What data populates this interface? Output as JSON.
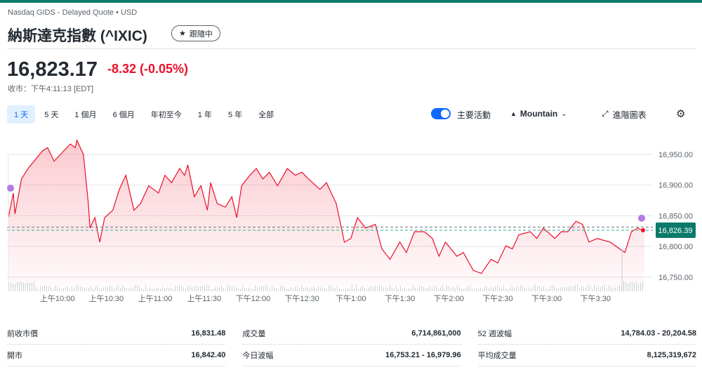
{
  "header": {
    "source": "Nasdaq GIDS - Delayed Quote • USD",
    "title": "納斯達克指數 (^IXIC)",
    "follow_label": "跟隨中"
  },
  "quote": {
    "price": "16,823.17",
    "change": "-8.32 (-0.05%)",
    "time": "收市：下午4:11:13 [EDT]"
  },
  "ranges": [
    {
      "label": "1 天",
      "active": true
    },
    {
      "label": "5 天"
    },
    {
      "label": "1 個月"
    },
    {
      "label": "6 個月"
    },
    {
      "label": "年初至今"
    },
    {
      "label": "1 年"
    },
    {
      "label": "5 年"
    },
    {
      "label": "全部"
    }
  ],
  "toolbar": {
    "events_label": "主要活動",
    "events_on": true,
    "chart_type": "Mountain",
    "advanced_label": "進階圖表"
  },
  "colors": {
    "line": "#eb0f29",
    "accent": "#0f69ff",
    "current_badge": "#0b7a6b",
    "event_dot": "#b57be5"
  },
  "chart_data": {
    "type": "area",
    "ylim": [
      16735,
      16990
    ],
    "y_ticks": [
      "16,950.00",
      "16,900.00",
      "16,850.00",
      "16,800.00",
      "16,750.00"
    ],
    "y_tick_values": [
      16950,
      16900,
      16850,
      16800,
      16750
    ],
    "x_ticks": [
      "上午10:00",
      "上午10:30",
      "上午11:00",
      "上午11:30",
      "下午12:00",
      "下午12:30",
      "下午1:00",
      "下午1:30",
      "下午2:00",
      "下午2:30",
      "下午3:00",
      "下午3:30"
    ],
    "x_tick_times": [
      "10:00",
      "10:30",
      "11:00",
      "11:30",
      "12:00",
      "12:30",
      "13:00",
      "13:30",
      "14:00",
      "14:30",
      "15:00",
      "15:30"
    ],
    "xlim": [
      "09:30",
      "16:00"
    ],
    "previous_close": 16831.48,
    "current_value": 16826.39,
    "current_label": "16,826.39",
    "grid": true,
    "points": [
      [
        "09:30",
        16847
      ],
      [
        "09:33",
        16887
      ],
      [
        "09:34",
        16853
      ],
      [
        "09:38",
        16910
      ],
      [
        "09:42",
        16927
      ],
      [
        "09:51",
        16956
      ],
      [
        "09:54",
        16961
      ],
      [
        "09:58",
        16939
      ],
      [
        "10:04",
        16956
      ],
      [
        "10:08",
        16967
      ],
      [
        "10:11",
        16961
      ],
      [
        "10:12",
        16973
      ],
      [
        "10:16",
        16950
      ],
      [
        "10:19",
        16870
      ],
      [
        "10:20",
        16830
      ],
      [
        "10:23",
        16847
      ],
      [
        "10:26",
        16807
      ],
      [
        "10:29",
        16847
      ],
      [
        "10:34",
        16859
      ],
      [
        "10:38",
        16893
      ],
      [
        "10:42",
        16916
      ],
      [
        "10:47",
        16859
      ],
      [
        "10:51",
        16870
      ],
      [
        "10:56",
        16899
      ],
      [
        "11:02",
        16887
      ],
      [
        "11:06",
        16916
      ],
      [
        "11:10",
        16904
      ],
      [
        "11:15",
        16927
      ],
      [
        "11:18",
        16916
      ],
      [
        "11:20",
        16933
      ],
      [
        "11:24",
        16881
      ],
      [
        "11:28",
        16899
      ],
      [
        "11:32",
        16859
      ],
      [
        "11:34",
        16904
      ],
      [
        "11:38",
        16870
      ],
      [
        "11:43",
        16864
      ],
      [
        "11:47",
        16881
      ],
      [
        "11:50",
        16847
      ],
      [
        "11:53",
        16899
      ],
      [
        "11:58",
        16916
      ],
      [
        "12:02",
        16927
      ],
      [
        "12:06",
        16910
      ],
      [
        "12:10",
        16921
      ],
      [
        "12:15",
        16899
      ],
      [
        "12:21",
        16927
      ],
      [
        "12:26",
        16916
      ],
      [
        "12:30",
        16921
      ],
      [
        "12:34",
        16910
      ],
      [
        "12:41",
        16893
      ],
      [
        "12:45",
        16904
      ],
      [
        "12:51",
        16870
      ],
      [
        "12:56",
        16807
      ],
      [
        "13:00",
        16813
      ],
      [
        "13:04",
        16847
      ],
      [
        "13:09",
        16830
      ],
      [
        "13:15",
        16836
      ],
      [
        "13:19",
        16796
      ],
      [
        "13:24",
        16779
      ],
      [
        "13:30",
        16807
      ],
      [
        "13:34",
        16790
      ],
      [
        "13:39",
        16824
      ],
      [
        "13:45",
        16824
      ],
      [
        "13:50",
        16813
      ],
      [
        "13:54",
        16784
      ],
      [
        "13:58",
        16807
      ],
      [
        "14:05",
        16784
      ],
      [
        "14:09",
        16790
      ],
      [
        "14:15",
        16761
      ],
      [
        "14:20",
        16756
      ],
      [
        "14:26",
        16779
      ],
      [
        "14:30",
        16773
      ],
      [
        "14:35",
        16801
      ],
      [
        "14:39",
        16796
      ],
      [
        "14:43",
        16819
      ],
      [
        "14:50",
        16824
      ],
      [
        "14:54",
        16813
      ],
      [
        "14:58",
        16830
      ],
      [
        "15:05",
        16813
      ],
      [
        "15:09",
        16824
      ],
      [
        "15:13",
        16824
      ],
      [
        "15:18",
        16841
      ],
      [
        "15:22",
        16836
      ],
      [
        "15:26",
        16807
      ],
      [
        "15:31",
        16813
      ],
      [
        "15:39",
        16807
      ],
      [
        "15:48",
        16790
      ],
      [
        "15:52",
        16824
      ],
      [
        "15:56",
        16830
      ],
      [
        "16:00",
        16824
      ]
    ]
  },
  "stats": [
    [
      {
        "label": "前收市價",
        "value": "16,831.48"
      },
      {
        "label": "成交量",
        "value": "6,714,861,000"
      },
      {
        "label": "52 週波幅",
        "value": "14,784.03 - 20,204.58"
      }
    ],
    [
      {
        "label": "開市",
        "value": "16,842.40"
      },
      {
        "label": "今日波幅",
        "value": "16,753.21 - 16,979.96"
      },
      {
        "label": "平均成交量",
        "value": "8,125,319,672"
      }
    ]
  ]
}
